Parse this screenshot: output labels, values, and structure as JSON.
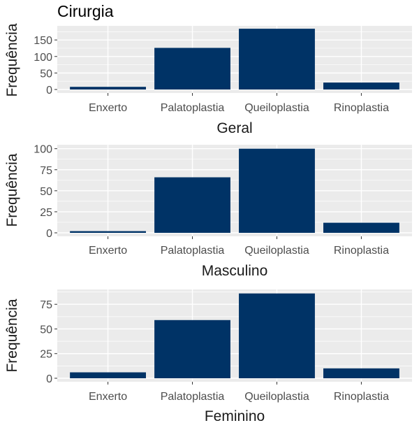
{
  "title": "Cirurgia",
  "colors": {
    "bar": "#003366",
    "panel": "#ebebeb",
    "grid": "#ffffff"
  },
  "chart_data": [
    {
      "type": "bar",
      "categories": [
        "Enxerto",
        "Palatoplastia",
        "Queiloplastia",
        "Rinoplastia"
      ],
      "values": [
        8,
        126,
        184,
        21
      ],
      "xlabel": "Geral",
      "ylabel": "Frequência",
      "ylim": [
        0,
        184
      ],
      "yticks": [
        0,
        50,
        100,
        150
      ],
      "grid": true
    },
    {
      "type": "bar",
      "categories": [
        "Enxerto",
        "Palatoplastia",
        "Queiloplastia",
        "Rinoplastia"
      ],
      "values": [
        2,
        66,
        100,
        12
      ],
      "xlabel": "Masculino",
      "ylabel": "Frequência",
      "ylim": [
        0,
        100
      ],
      "yticks": [
        0,
        25,
        50,
        75,
        100
      ],
      "grid": true
    },
    {
      "type": "bar",
      "categories": [
        "Enxerto",
        "Palatoplastia",
        "Queiloplastia",
        "Rinoplastia"
      ],
      "values": [
        6,
        59,
        86,
        10
      ],
      "xlabel": "Feminino",
      "ylabel": "Frequência",
      "ylim": [
        0,
        86
      ],
      "yticks": [
        0,
        25,
        50,
        75
      ],
      "grid": true
    }
  ]
}
